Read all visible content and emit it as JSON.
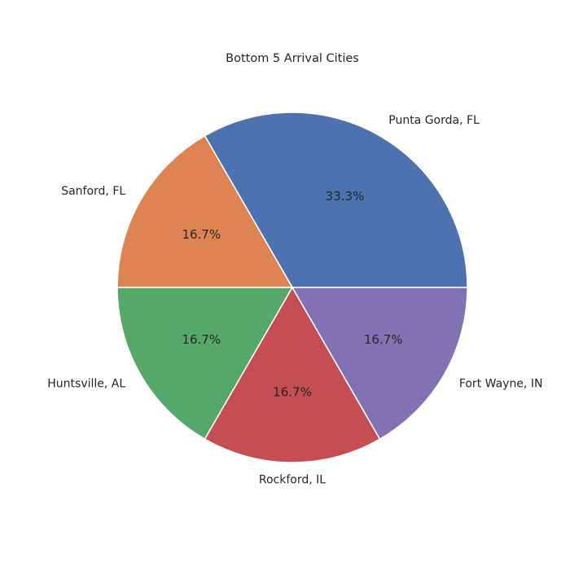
{
  "chart_data": {
    "type": "pie",
    "title": "Bottom 5 Arrival Cities",
    "categories": [
      "Punta Gorda, FL",
      "Sanford, FL",
      "Huntsville, AL",
      "Rockford, IL",
      "Fort Wayne, IN"
    ],
    "values": [
      2,
      1,
      1,
      1,
      1
    ],
    "percent_labels": [
      "33.3%",
      "16.7%",
      "16.7%",
      "16.7%",
      "16.7%"
    ],
    "colors": [
      "#4c72b0",
      "#dd8452",
      "#55a868",
      "#c44e52",
      "#8172b3"
    ],
    "start_angle_deg": 0,
    "direction": "counterclockwise",
    "legend": "none"
  }
}
